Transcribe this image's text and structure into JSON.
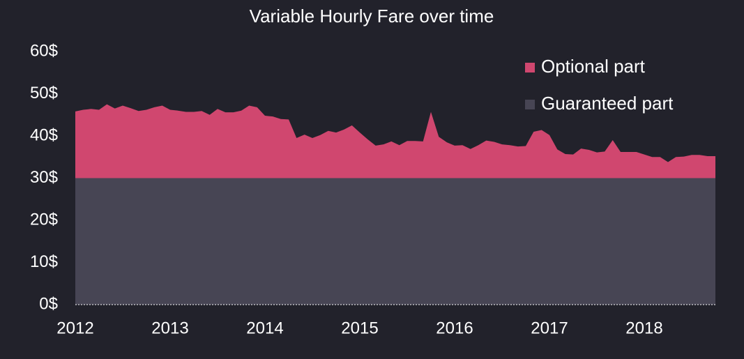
{
  "chart_data": {
    "type": "stacked-area",
    "title": "Variable Hourly Fare over time",
    "x": [
      2012,
      2012.083,
      2012.167,
      2012.25,
      2012.333,
      2012.417,
      2012.5,
      2012.583,
      2012.667,
      2012.75,
      2012.833,
      2012.917,
      2013,
      2013.083,
      2013.167,
      2013.25,
      2013.333,
      2013.417,
      2013.5,
      2013.583,
      2013.667,
      2013.75,
      2013.833,
      2013.917,
      2014,
      2014.083,
      2014.167,
      2014.25,
      2014.333,
      2014.417,
      2014.5,
      2014.583,
      2014.667,
      2014.75,
      2014.833,
      2014.917,
      2015,
      2015.083,
      2015.167,
      2015.25,
      2015.333,
      2015.417,
      2015.5,
      2015.583,
      2015.667,
      2015.75,
      2015.833,
      2015.917,
      2016,
      2016.083,
      2016.167,
      2016.25,
      2016.333,
      2016.417,
      2016.5,
      2016.583,
      2016.667,
      2016.75,
      2016.833,
      2016.917,
      2017,
      2017.083,
      2017.167,
      2017.25,
      2017.333,
      2017.417,
      2017.5,
      2017.583,
      2017.667,
      2017.75,
      2017.833,
      2017.917,
      2018,
      2018.083,
      2018.167,
      2018.25,
      2018.333,
      2018.417,
      2018.5,
      2018.583,
      2018.667,
      2018.75
    ],
    "series": [
      {
        "name": "Optional part",
        "color": "#d0476f",
        "values": [
          15.8,
          16.2,
          16.4,
          16.2,
          17.5,
          16.5,
          17.2,
          16.6,
          15.9,
          16.2,
          16.8,
          17.2,
          16.2,
          16.0,
          15.7,
          15.7,
          15.9,
          15.0,
          16.4,
          15.6,
          15.6,
          16.0,
          17.2,
          16.8,
          14.8,
          14.6,
          14.0,
          13.9,
          9.5,
          10.3,
          9.5,
          10.2,
          11.2,
          10.8,
          11.5,
          12.5,
          10.8,
          9.2,
          7.7,
          8.0,
          8.7,
          7.8,
          8.8,
          8.8,
          8.7,
          15.7,
          9.8,
          8.5,
          7.7,
          7.8,
          6.9,
          7.8,
          8.9,
          8.6,
          8.0,
          7.8,
          7.5,
          7.6,
          11.0,
          11.4,
          10.2,
          6.8,
          5.7,
          5.6,
          7.0,
          6.7,
          6.1,
          6.3,
          9.0,
          6.2,
          6.2,
          6.2,
          5.6,
          5.0,
          5.0,
          3.8,
          5.0,
          5.1,
          5.5,
          5.5,
          5.2,
          5.2
        ]
      },
      {
        "name": "Guaranteed part",
        "color": "#474554",
        "values": [
          30,
          30,
          30,
          30,
          30,
          30,
          30,
          30,
          30,
          30,
          30,
          30,
          30,
          30,
          30,
          30,
          30,
          30,
          30,
          30,
          30,
          30,
          30,
          30,
          30,
          30,
          30,
          30,
          30,
          30,
          30,
          30,
          30,
          30,
          30,
          30,
          30,
          30,
          30,
          30,
          30,
          30,
          30,
          30,
          30,
          30,
          30,
          30,
          30,
          30,
          30,
          30,
          30,
          30,
          30,
          30,
          30,
          30,
          30,
          30,
          30,
          30,
          30,
          30,
          30,
          30,
          30,
          30,
          30,
          30,
          30,
          30,
          30,
          30,
          30,
          30,
          30,
          30,
          30,
          30,
          30,
          30
        ]
      }
    ],
    "xlim": [
      2012,
      2018.75
    ],
    "xticks": [
      2012,
      2013,
      2014,
      2015,
      2016,
      2017,
      2018
    ],
    "ylim": [
      0,
      60
    ],
    "yticks": [
      {
        "value": 0,
        "label": "0$"
      },
      {
        "value": 10,
        "label": "10$"
      },
      {
        "value": 20,
        "label": "20$"
      },
      {
        "value": 30,
        "label": "30$"
      },
      {
        "value": 40,
        "label": "40$"
      },
      {
        "value": 50,
        "label": "50$"
      },
      {
        "value": 60,
        "label": "60$"
      }
    ],
    "legend": "top-right"
  }
}
